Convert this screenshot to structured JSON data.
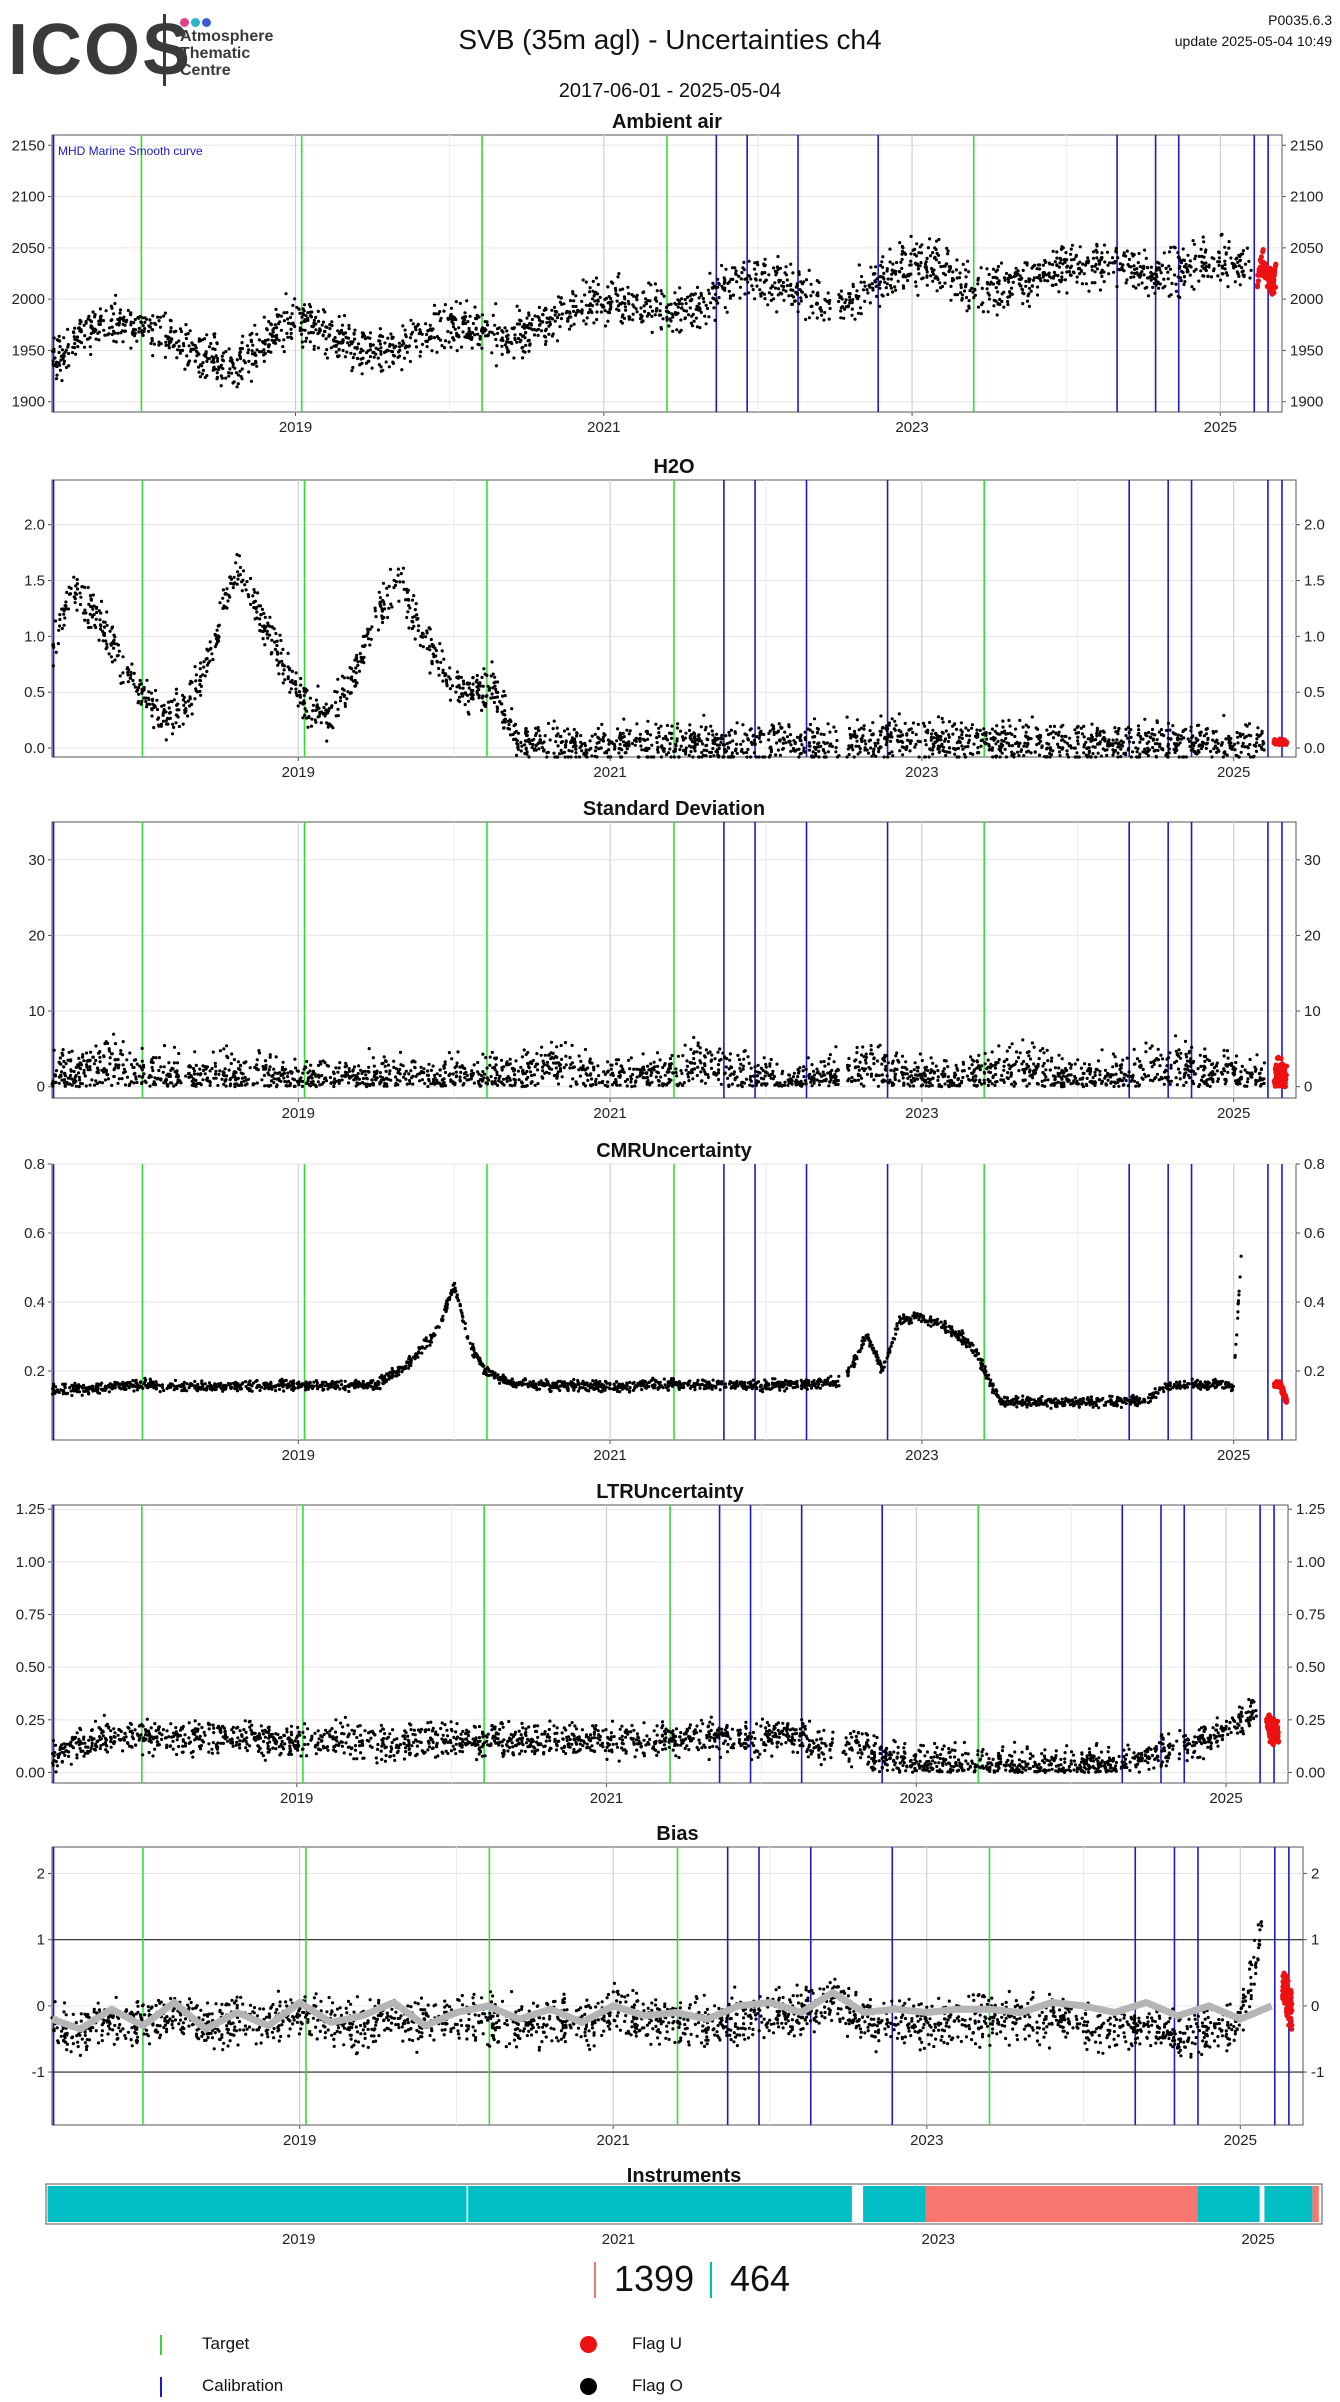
{
  "header": {
    "logo_text": "ICOS",
    "logo_subtitle": "Atmosphere Thematic Centre",
    "logo_dot_colors": [
      "#e0428a",
      "#27b6c9",
      "#3b5bd6"
    ],
    "title": "SVB  (35m agl) - Uncertainties ch4",
    "date_range": "2017-06-01 - 2025-05-04",
    "version": "P0035.6.3",
    "update": "update  2025-05-04 10:49"
  },
  "colors": {
    "target_line": "#33dd33",
    "calibration_line": "#1a1acc",
    "flag_u": "#ee1111",
    "flag_o": "#000000",
    "bias_smooth": "#b5b5b5",
    "bias_extra": "#f5a623",
    "instrument_a": "#00bfc4",
    "instrument_b": "#f8766d"
  },
  "event_lines": {
    "target_dates": [
      2018.0,
      2019.04,
      2020.21,
      2021.41,
      2023.4
    ],
    "calibration_dates": [
      2017.43,
      2021.73,
      2021.93,
      2022.26,
      2022.78,
      2024.33,
      2024.58,
      2024.73,
      2025.22,
      2025.31
    ]
  },
  "chart_data": [
    {
      "id": "ambient",
      "type": "scatter",
      "title": "Ambient air",
      "annotation": "MHD Marine Smooth curve",
      "x_ticks": [
        "2019",
        "2021",
        "2023",
        "2025"
      ],
      "xlim": [
        2017.42,
        2025.4
      ],
      "ylim": [
        1890,
        2160
      ],
      "y_ticks": [
        1900,
        1950,
        2000,
        2050,
        2100,
        2150
      ],
      "y_tick_labels": [
        "1900",
        "1950",
        "2000",
        "2050",
        "2100",
        "2150"
      ],
      "series": [
        {
          "flag": "O",
          "x": [
            2017.42,
            2017.6,
            2017.8,
            2018.0,
            2018.2,
            2018.4,
            2018.6,
            2018.8,
            2019.0,
            2019.2,
            2019.4,
            2019.6,
            2019.8,
            2020.0,
            2020.2,
            2020.4,
            2020.6,
            2020.8,
            2021.0,
            2021.2,
            2021.4,
            2021.6,
            2021.8,
            2022.0,
            2022.2,
            2022.4,
            2022.6,
            2022.8,
            2023.0,
            2023.2,
            2023.4,
            2023.6,
            2023.8,
            2024.0,
            2024.2,
            2024.4,
            2024.6,
            2024.8,
            2025.0,
            2025.2
          ],
          "y": [
            1940,
            1965,
            1980,
            1975,
            1960,
            1945,
            1930,
            1960,
            1985,
            1965,
            1955,
            1950,
            1965,
            1975,
            1970,
            1960,
            1975,
            1995,
            2000,
            1995,
            1985,
            1990,
            2015,
            2020,
            2010,
            2000,
            1995,
            2020,
            2035,
            2030,
            2005,
            2010,
            2025,
            2030,
            2035,
            2030,
            2025,
            2030,
            2035,
            2030
          ],
          "spread": 22
        },
        {
          "flag": "U",
          "x": [
            2025.24,
            2025.27,
            2025.3,
            2025.33,
            2025.36
          ],
          "y": [
            2020,
            2035,
            2030,
            2015,
            2025
          ],
          "spread": 14
        }
      ]
    },
    {
      "id": "h2o",
      "type": "scatter",
      "title": "H2O",
      "x_ticks": [
        "2019",
        "2021",
        "2023",
        "2025"
      ],
      "xlim": [
        2017.42,
        2025.4
      ],
      "ylim": [
        -0.08,
        2.4
      ],
      "y_ticks": [
        0.0,
        0.5,
        1.0,
        1.5,
        2.0
      ],
      "y_tick_labels": [
        "0.0",
        "0.5",
        "1.0",
        "1.5",
        "2.0"
      ],
      "series": [
        {
          "flag": "O",
          "x": [
            2017.42,
            2017.55,
            2017.7,
            2017.85,
            2018.0,
            2018.15,
            2018.3,
            2018.45,
            2018.6,
            2018.75,
            2018.9,
            2019.05,
            2019.2,
            2019.35,
            2019.5,
            2019.65,
            2019.8,
            2019.95,
            2020.1,
            2020.25,
            2020.4,
            2020.6,
            2020.8,
            2021.0,
            2021.2,
            2021.4,
            2021.6,
            2021.8,
            2022.0,
            2022.2,
            2022.4,
            2022.6,
            2022.8,
            2023.0,
            2023.2,
            2023.4,
            2023.6,
            2023.8,
            2024.0,
            2024.2,
            2024.4,
            2024.6,
            2024.8,
            2025.0,
            2025.2
          ],
          "y": [
            0.9,
            1.4,
            1.2,
            0.8,
            0.5,
            0.3,
            0.4,
            0.9,
            1.6,
            1.2,
            0.8,
            0.4,
            0.3,
            0.6,
            1.2,
            1.5,
            1.0,
            0.6,
            0.5,
            0.55,
            0.04,
            0.04,
            0.04,
            0.04,
            0.05,
            0.05,
            0.05,
            0.04,
            0.04,
            0.05,
            0.04,
            0.04,
            0.1,
            0.05,
            0.05,
            0.05,
            0.04,
            0.04,
            0.04,
            0.04,
            0.05,
            0.05,
            0.05,
            0.04,
            0.05
          ],
          "spread": 0.18
        },
        {
          "flag": "U",
          "x": [
            2025.26,
            2025.3,
            2025.34
          ],
          "y": [
            0.05,
            0.06,
            0.05
          ],
          "spread": 0.02
        }
      ]
    },
    {
      "id": "stdev",
      "type": "scatter",
      "title": "Standard Deviation",
      "x_ticks": [
        "2019",
        "2021",
        "2023",
        "2025"
      ],
      "xlim": [
        2017.42,
        2025.4
      ],
      "ylim": [
        -1.5,
        35
      ],
      "y_ticks": [
        0,
        10,
        20,
        30
      ],
      "y_tick_labels": [
        "0",
        "10",
        "20",
        "30"
      ],
      "series": [
        {
          "flag": "O",
          "x": [
            2017.42,
            2017.6,
            2017.8,
            2018.0,
            2018.2,
            2018.4,
            2018.6,
            2018.8,
            2019.0,
            2019.2,
            2019.4,
            2019.6,
            2019.8,
            2020.0,
            2020.2,
            2020.4,
            2020.6,
            2020.8,
            2021.0,
            2021.2,
            2021.4,
            2021.6,
            2021.8,
            2022.0,
            2022.2,
            2022.4,
            2022.6,
            2022.8,
            2023.0,
            2023.2,
            2023.4,
            2023.6,
            2023.8,
            2024.0,
            2024.2,
            2024.4,
            2024.6,
            2024.8,
            2025.0,
            2025.2
          ],
          "y": [
            1,
            2,
            3,
            1.5,
            1,
            1.5,
            2,
            1.5,
            1,
            1,
            1.5,
            1,
            1,
            1,
            1,
            1.5,
            3,
            2,
            1,
            1,
            2,
            3,
            2,
            1,
            1,
            1,
            2.5,
            2,
            1,
            1,
            1.5,
            3,
            2,
            1,
            1,
            2,
            3,
            2,
            1,
            1.5
          ],
          "spread": 3
        },
        {
          "flag": "U",
          "x": [
            2025.26,
            2025.3,
            2025.34
          ],
          "y": [
            1.5,
            2,
            1
          ],
          "spread": 2
        }
      ]
    },
    {
      "id": "cmr",
      "type": "scatter",
      "title": "CMRUncertainty",
      "x_ticks": [
        "2019",
        "2021",
        "2023",
        "2025"
      ],
      "xlim": [
        2017.42,
        2025.4
      ],
      "ylim": [
        0.0,
        0.8
      ],
      "y_ticks": [
        0.2,
        0.4,
        0.6,
        0.8
      ],
      "y_tick_labels": [
        "0.2",
        "0.4",
        "0.6",
        "0.8"
      ],
      "series": [
        {
          "flag": "O",
          "x": [
            2017.42,
            2017.7,
            2018.0,
            2018.3,
            2018.6,
            2018.9,
            2019.2,
            2019.5,
            2019.7,
            2019.9,
            2020.0,
            2020.1,
            2020.2,
            2020.4,
            2020.7,
            2021.0,
            2021.3,
            2021.6,
            2021.9,
            2022.2,
            2022.5,
            2022.65,
            2022.75,
            2022.85,
            2022.95,
            2023.1,
            2023.25,
            2023.35,
            2023.5,
            2023.8,
            2024.1,
            2024.4,
            2024.6,
            2024.8,
            2025.0,
            2025.05
          ],
          "y": [
            0.145,
            0.15,
            0.16,
            0.155,
            0.155,
            0.16,
            0.155,
            0.16,
            0.22,
            0.32,
            0.45,
            0.28,
            0.2,
            0.16,
            0.16,
            0.155,
            0.16,
            0.16,
            0.16,
            0.16,
            0.17,
            0.3,
            0.2,
            0.34,
            0.36,
            0.34,
            0.3,
            0.25,
            0.11,
            0.11,
            0.11,
            0.11,
            0.16,
            0.16,
            0.16,
            0.55
          ],
          "spread": 0.015
        },
        {
          "flag": "U",
          "x": [
            2025.26,
            2025.3,
            2025.34
          ],
          "y": [
            0.16,
            0.16,
            0.11
          ],
          "spread": 0.01
        }
      ]
    },
    {
      "id": "ltr",
      "type": "scatter",
      "title": "LTRUncertainty",
      "x_ticks": [
        "2019",
        "2021",
        "2023",
        "2025"
      ],
      "xlim": [
        2017.42,
        2025.4
      ],
      "ylim": [
        -0.05,
        1.27
      ],
      "y_ticks": [
        0.0,
        0.25,
        0.5,
        0.75,
        1.0,
        1.25
      ],
      "y_tick_labels": [
        "0.00",
        "0.25",
        "0.50",
        "0.75",
        "1.00",
        "1.25"
      ],
      "series": [
        {
          "flag": "O",
          "x": [
            2017.42,
            2017.6,
            2017.8,
            2018.0,
            2018.2,
            2018.4,
            2018.6,
            2018.8,
            2019.0,
            2019.2,
            2019.4,
            2019.6,
            2019.8,
            2020.0,
            2020.2,
            2020.4,
            2020.6,
            2020.8,
            2021.0,
            2021.2,
            2021.4,
            2021.6,
            2021.8,
            2022.0,
            2022.2,
            2022.4,
            2022.6,
            2022.8,
            2023.0,
            2023.2,
            2023.4,
            2023.6,
            2023.8,
            2024.0,
            2024.2,
            2024.4,
            2024.6,
            2024.8,
            2025.0,
            2025.2
          ],
          "y": [
            0.05,
            0.15,
            0.17,
            0.18,
            0.17,
            0.16,
            0.17,
            0.16,
            0.15,
            0.16,
            0.15,
            0.14,
            0.15,
            0.16,
            0.15,
            0.15,
            0.16,
            0.15,
            0.16,
            0.15,
            0.16,
            0.17,
            0.17,
            0.16,
            0.18,
            0.12,
            0.14,
            0.06,
            0.04,
            0.04,
            0.03,
            0.03,
            0.03,
            0.03,
            0.03,
            0.06,
            0.1,
            0.14,
            0.2,
            0.3
          ],
          "spread": 0.08
        },
        {
          "flag": "U",
          "x": [
            2025.26,
            2025.3,
            2025.34
          ],
          "y": [
            0.25,
            0.2,
            0.18
          ],
          "spread": 0.06
        }
      ]
    },
    {
      "id": "bias",
      "type": "scatter",
      "title": "Bias",
      "x_ticks": [
        "2019",
        "2021",
        "2023",
        "2025"
      ],
      "xlim": [
        2017.42,
        2025.4
      ],
      "ylim": [
        -1.8,
        2.4
      ],
      "y_ticks": [
        -1,
        0,
        1,
        2
      ],
      "y_tick_labels": [
        "-1",
        "0",
        "1",
        "2"
      ],
      "ref_lines": [
        -1,
        1
      ],
      "series": [
        {
          "flag": "O",
          "x": [
            2017.42,
            2017.6,
            2017.8,
            2018.0,
            2018.2,
            2018.4,
            2018.6,
            2018.8,
            2019.0,
            2019.2,
            2019.4,
            2019.6,
            2019.8,
            2020.0,
            2020.2,
            2020.4,
            2020.6,
            2020.8,
            2021.0,
            2021.2,
            2021.4,
            2021.6,
            2021.8,
            2022.0,
            2022.2,
            2022.4,
            2022.6,
            2022.8,
            2023.0,
            2023.2,
            2023.4,
            2023.6,
            2023.8,
            2024.0,
            2024.2,
            2024.4,
            2024.6,
            2024.8,
            2025.0,
            2025.15
          ],
          "y": [
            -0.3,
            -0.4,
            -0.2,
            -0.3,
            -0.1,
            -0.3,
            -0.2,
            -0.3,
            -0.1,
            -0.2,
            -0.3,
            -0.2,
            -0.3,
            -0.2,
            -0.2,
            -0.3,
            -0.2,
            -0.3,
            -0.1,
            -0.2,
            -0.2,
            -0.3,
            -0.2,
            -0.1,
            -0.1,
            0.1,
            -0.3,
            -0.2,
            -0.3,
            -0.2,
            -0.2,
            -0.2,
            -0.2,
            -0.3,
            -0.3,
            -0.3,
            -0.5,
            -0.4,
            -0.2,
            1.2
          ],
          "spread": 0.35
        },
        {
          "flag": "U",
          "x": [
            2025.27,
            2025.3,
            2025.33
          ],
          "y": [
            0.3,
            0.1,
            -0.1
          ],
          "spread": 0.3
        }
      ],
      "smooth": {
        "x": [
          2017.42,
          2017.6,
          2017.8,
          2018.0,
          2018.2,
          2018.4,
          2018.6,
          2018.8,
          2019.0,
          2019.2,
          2019.4,
          2019.6,
          2019.8,
          2020.0,
          2020.2,
          2020.4,
          2020.6,
          2020.8,
          2021.0,
          2021.2,
          2021.4,
          2021.6,
          2021.8,
          2022.0,
          2022.2,
          2022.4,
          2022.6,
          2022.8,
          2023.0,
          2023.2,
          2023.4,
          2023.6,
          2023.8,
          2024.0,
          2024.2,
          2024.4,
          2024.6,
          2024.8,
          2025.0,
          2025.2
        ],
        "y": [
          -0.2,
          -0.35,
          -0.05,
          -0.3,
          0.05,
          -0.35,
          -0.1,
          -0.3,
          0.05,
          -0.25,
          -0.15,
          0.05,
          -0.3,
          -0.1,
          0.0,
          -0.2,
          -0.05,
          -0.25,
          0.0,
          -0.15,
          -0.1,
          -0.2,
          0.0,
          0.05,
          -0.1,
          0.2,
          -0.1,
          -0.05,
          -0.1,
          -0.05,
          -0.05,
          -0.1,
          0.05,
          0.0,
          -0.1,
          0.05,
          -0.15,
          0.0,
          -0.2,
          0.0
        ]
      }
    },
    {
      "id": "instruments",
      "type": "bar",
      "title": "Instruments",
      "x_ticks": [
        "2019",
        "2021",
        "2023",
        "2025"
      ],
      "xlim": [
        2017.42,
        2025.4
      ],
      "segments": [
        {
          "start": 2017.43,
          "end": 2020.05,
          "instrument": "464"
        },
        {
          "start": 2020.06,
          "end": 2022.46,
          "instrument": "464"
        },
        {
          "start": 2022.53,
          "end": 2022.92,
          "instrument": "464"
        },
        {
          "start": 2022.92,
          "end": 2024.62,
          "instrument": "1399"
        },
        {
          "start": 2024.62,
          "end": 2025.01,
          "instrument": "464"
        },
        {
          "start": 2025.04,
          "end": 2025.34,
          "instrument": "464"
        },
        {
          "start": 2025.34,
          "end": 2025.38,
          "instrument": "1399"
        }
      ]
    }
  ],
  "instrument_counts": [
    {
      "label": "1399",
      "color": "#f8766d"
    },
    {
      "label": "464",
      "color": "#00bfc4"
    }
  ],
  "legend": {
    "items": [
      {
        "key": "target",
        "label": "Target",
        "kind": "line",
        "color": "#33dd33"
      },
      {
        "key": "calibration",
        "label": "Calibration",
        "kind": "line",
        "color": "#1a1acc"
      },
      {
        "key": "flag_u",
        "label": "Flag U",
        "kind": "dot",
        "color": "#ee1111"
      },
      {
        "key": "flag_o",
        "label": "Flag O",
        "kind": "dot",
        "color": "#000000"
      }
    ]
  }
}
